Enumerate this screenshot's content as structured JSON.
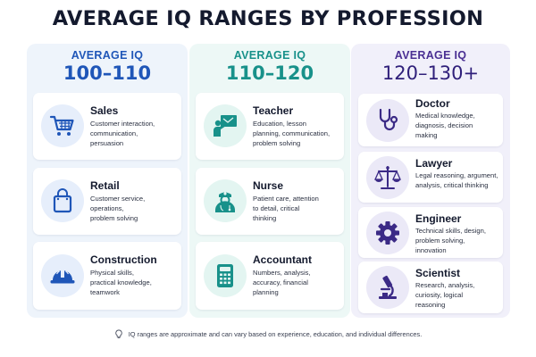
{
  "title": "AVERAGE IQ RANGES BY PROFESSION",
  "columns": [
    {
      "subtitle": "AVERAGE IQ",
      "range": "100–110",
      "accent": "#1f56b8",
      "professions": [
        {
          "name": "Sales",
          "icon": "shopping-cart-icon",
          "desc": [
            "Customer interaction,",
            "communication,",
            "persuasion"
          ]
        },
        {
          "name": "Retail",
          "icon": "shopping-bag-icon",
          "desc": [
            "Customer service,",
            "operations,",
            "problem solving"
          ]
        },
        {
          "name": "Construction",
          "icon": "hard-hat-icon",
          "desc": [
            "Physical skills,",
            "practical knowledge,",
            "teamwork"
          ]
        }
      ]
    },
    {
      "subtitle": "AVERAGE IQ",
      "range": "110–120",
      "accent": "#18918a",
      "professions": [
        {
          "name": "Teacher",
          "icon": "teacher-board-icon",
          "desc": [
            "Education, lesson",
            "planning, communication,",
            "problem solving"
          ]
        },
        {
          "name": "Nurse",
          "icon": "nurse-icon",
          "desc": [
            "Patient care, attention",
            "to detail, critical",
            "thinking"
          ]
        },
        {
          "name": "Accountant",
          "icon": "calculator-icon",
          "desc": [
            "Numbers, analysis,",
            "accuracy, financial",
            "planning"
          ]
        }
      ]
    },
    {
      "subtitle": "AVERAGE IQ",
      "range": "120–130+",
      "accent": "#3b2a86",
      "professions": [
        {
          "name": "Doctor",
          "icon": "stethoscope-icon",
          "desc": [
            "Medical knowledge,",
            "diagnosis, decision",
            "making"
          ]
        },
        {
          "name": "Lawyer",
          "icon": "scales-icon",
          "desc": [
            "Legal reasoning, argument,",
            "analysis, critical thinking"
          ]
        },
        {
          "name": "Engineer",
          "icon": "gear-icon",
          "desc": [
            "Technical skills, design,",
            "problem solving,",
            "innovation"
          ]
        },
        {
          "name": "Scientist",
          "icon": "microscope-icon",
          "desc": [
            "Research, analysis,",
            "curiosity, logical",
            "reasoning"
          ]
        }
      ]
    }
  ],
  "footnote": "IQ ranges are approximate and can vary based on experience, education, and individual differences."
}
